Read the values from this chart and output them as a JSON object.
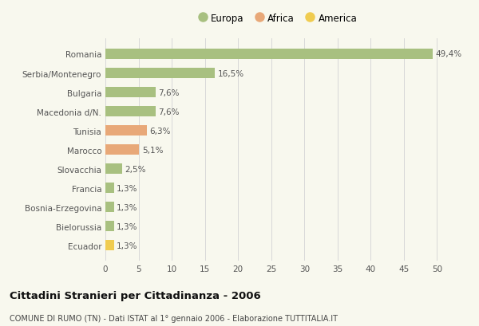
{
  "categories": [
    "Romania",
    "Serbia/Montenegro",
    "Bulgaria",
    "Macedonia d/N.",
    "Tunisia",
    "Marocco",
    "Slovacchia",
    "Francia",
    "Bosnia-Erzegovina",
    "Bielorussia",
    "Ecuador"
  ],
  "values": [
    49.4,
    16.5,
    7.6,
    7.6,
    6.3,
    5.1,
    2.5,
    1.3,
    1.3,
    1.3,
    1.3
  ],
  "labels": [
    "49,4%",
    "16,5%",
    "7,6%",
    "7,6%",
    "6,3%",
    "5,1%",
    "2,5%",
    "1,3%",
    "1,3%",
    "1,3%",
    "1,3%"
  ],
  "colors": [
    "#a8c080",
    "#a8c080",
    "#a8c080",
    "#a8c080",
    "#e8a878",
    "#e8a878",
    "#a8c080",
    "#a8c080",
    "#a8c080",
    "#a8c080",
    "#f0cc50"
  ],
  "legend_labels": [
    "Europa",
    "Africa",
    "America"
  ],
  "legend_colors": [
    "#a8c080",
    "#e8a878",
    "#f0cc50"
  ],
  "xlim": [
    0,
    52
  ],
  "xticks": [
    0,
    5,
    10,
    15,
    20,
    25,
    30,
    35,
    40,
    45,
    50
  ],
  "title": "Cittadini Stranieri per Cittadinanza - 2006",
  "subtitle": "COMUNE DI RUMO (TN) - Dati ISTAT al 1° gennaio 2006 - Elaborazione TUTTITALIA.IT",
  "background_color": "#f8f8ee",
  "grid_color": "#d8d8d8",
  "bar_height": 0.55
}
